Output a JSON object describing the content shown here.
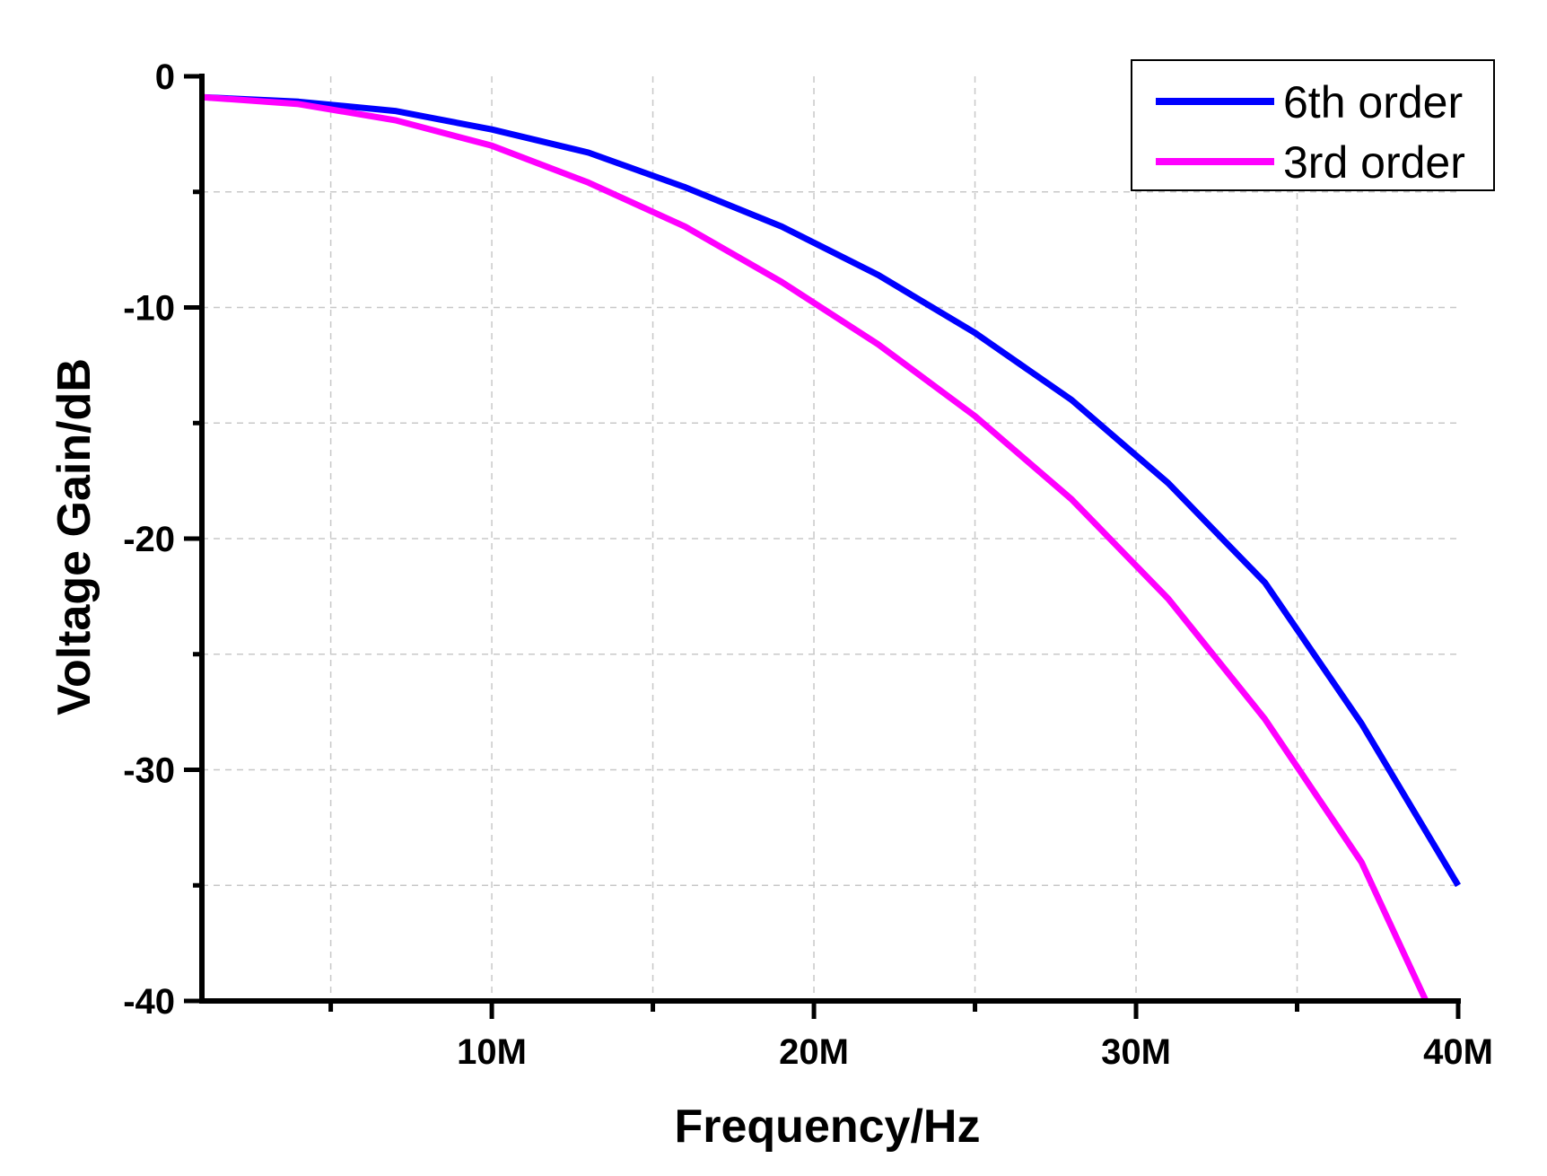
{
  "chart_data": {
    "type": "line",
    "title": "",
    "xlabel": "Frequency/Hz",
    "ylabel": "Voltage Gain/dB",
    "xlim": [
      1000000,
      40000000
    ],
    "ylim": [
      -40,
      0
    ],
    "x_ticks": [
      {
        "value": 10000000,
        "label": "10M"
      },
      {
        "value": 20000000,
        "label": "20M"
      },
      {
        "value": 30000000,
        "label": "30M"
      },
      {
        "value": 40000000,
        "label": "40M"
      }
    ],
    "x_minor_ticks": [
      5000000,
      15000000,
      25000000,
      35000000
    ],
    "y_ticks": [
      {
        "value": 0,
        "label": "0"
      },
      {
        "value": -10,
        "label": "-10"
      },
      {
        "value": -20,
        "label": "-20"
      },
      {
        "value": -30,
        "label": "-30"
      },
      {
        "value": -40,
        "label": "-40"
      }
    ],
    "y_minor_ticks": [
      -5,
      -15,
      -25,
      -35
    ],
    "grid": true,
    "legend_position": "top-right",
    "series": [
      {
        "name": "6th order",
        "color": "#0000ff",
        "x": [
          1000000,
          4000000,
          7000000,
          10000000,
          13000000,
          16000000,
          19000000,
          22000000,
          25000000,
          28000000,
          31000000,
          34000000,
          37000000,
          40000000
        ],
        "y": [
          -0.9,
          -1.1,
          -1.5,
          -2.3,
          -3.3,
          -4.8,
          -6.5,
          -8.6,
          -11.1,
          -14.0,
          -17.6,
          -21.9,
          -28.0,
          -35.0
        ]
      },
      {
        "name": "3rd order",
        "color": "#ff00ff",
        "x": [
          1000000,
          4000000,
          7000000,
          10000000,
          13000000,
          16000000,
          19000000,
          22000000,
          25000000,
          28000000,
          31000000,
          34000000,
          37000000,
          39000000
        ],
        "y": [
          -0.9,
          -1.2,
          -1.9,
          -3.0,
          -4.6,
          -6.5,
          -8.9,
          -11.6,
          -14.7,
          -18.3,
          -22.6,
          -27.8,
          -34.0,
          -40.0
        ]
      }
    ]
  }
}
